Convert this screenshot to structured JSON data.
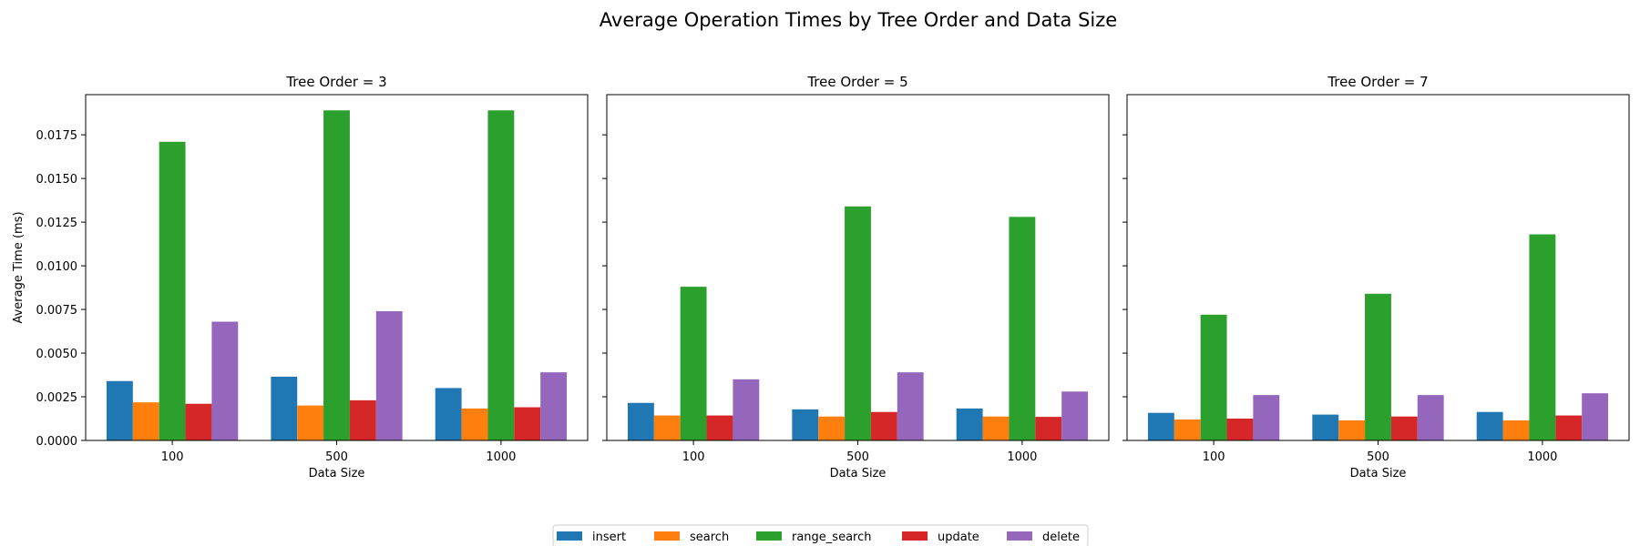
{
  "figure": {
    "title": "Average Operation Times by Tree Order and Data Size"
  },
  "colors": {
    "insert": "#1f77b4",
    "search": "#ff7f0e",
    "range_search": "#2ca02c",
    "update": "#d62728",
    "delete": "#9467bd"
  },
  "chart_data": [
    {
      "type": "bar",
      "title": "Tree Order = 3",
      "xlabel": "Data Size",
      "ylabel": "Average Time (ms)",
      "categories": [
        "100",
        "500",
        "1000"
      ],
      "ylim": [
        0,
        0.0198
      ],
      "yticks": [
        "0.0000",
        "0.0025",
        "0.0050",
        "0.0075",
        "0.0100",
        "0.0125",
        "0.0150",
        "0.0175"
      ],
      "series": [
        {
          "name": "insert",
          "values": [
            0.0034,
            0.00365,
            0.003
          ]
        },
        {
          "name": "search",
          "values": [
            0.00218,
            0.002,
            0.00183
          ]
        },
        {
          "name": "range_search",
          "values": [
            0.0171,
            0.0189,
            0.0189
          ]
        },
        {
          "name": "update",
          "values": [
            0.0021,
            0.0023,
            0.0019
          ]
        },
        {
          "name": "delete",
          "values": [
            0.0068,
            0.0074,
            0.0039
          ]
        }
      ]
    },
    {
      "type": "bar",
      "title": "Tree Order = 5",
      "xlabel": "Data Size",
      "ylabel": "",
      "categories": [
        "100",
        "500",
        "1000"
      ],
      "ylim": [
        0,
        0.0198
      ],
      "series": [
        {
          "name": "insert",
          "values": [
            0.00215,
            0.00178,
            0.00183
          ]
        },
        {
          "name": "search",
          "values": [
            0.00143,
            0.00137,
            0.00137
          ]
        },
        {
          "name": "range_search",
          "values": [
            0.0088,
            0.0134,
            0.0128
          ]
        },
        {
          "name": "update",
          "values": [
            0.00143,
            0.00163,
            0.00135
          ]
        },
        {
          "name": "delete",
          "values": [
            0.0035,
            0.0039,
            0.0028
          ]
        }
      ]
    },
    {
      "type": "bar",
      "title": "Tree Order = 7",
      "xlabel": "Data Size",
      "ylabel": "",
      "categories": [
        "100",
        "500",
        "1000"
      ],
      "ylim": [
        0,
        0.0198
      ],
      "series": [
        {
          "name": "insert",
          "values": [
            0.00158,
            0.00148,
            0.00163
          ]
        },
        {
          "name": "search",
          "values": [
            0.0012,
            0.00115,
            0.00115
          ]
        },
        {
          "name": "range_search",
          "values": [
            0.0072,
            0.0084,
            0.0118
          ]
        },
        {
          "name": "update",
          "values": [
            0.00125,
            0.00137,
            0.00143
          ]
        },
        {
          "name": "delete",
          "values": [
            0.0026,
            0.0026,
            0.0027
          ]
        }
      ]
    }
  ],
  "legend": {
    "placement": "bottom-center",
    "items": [
      "insert",
      "search",
      "range_search",
      "update",
      "delete"
    ]
  }
}
